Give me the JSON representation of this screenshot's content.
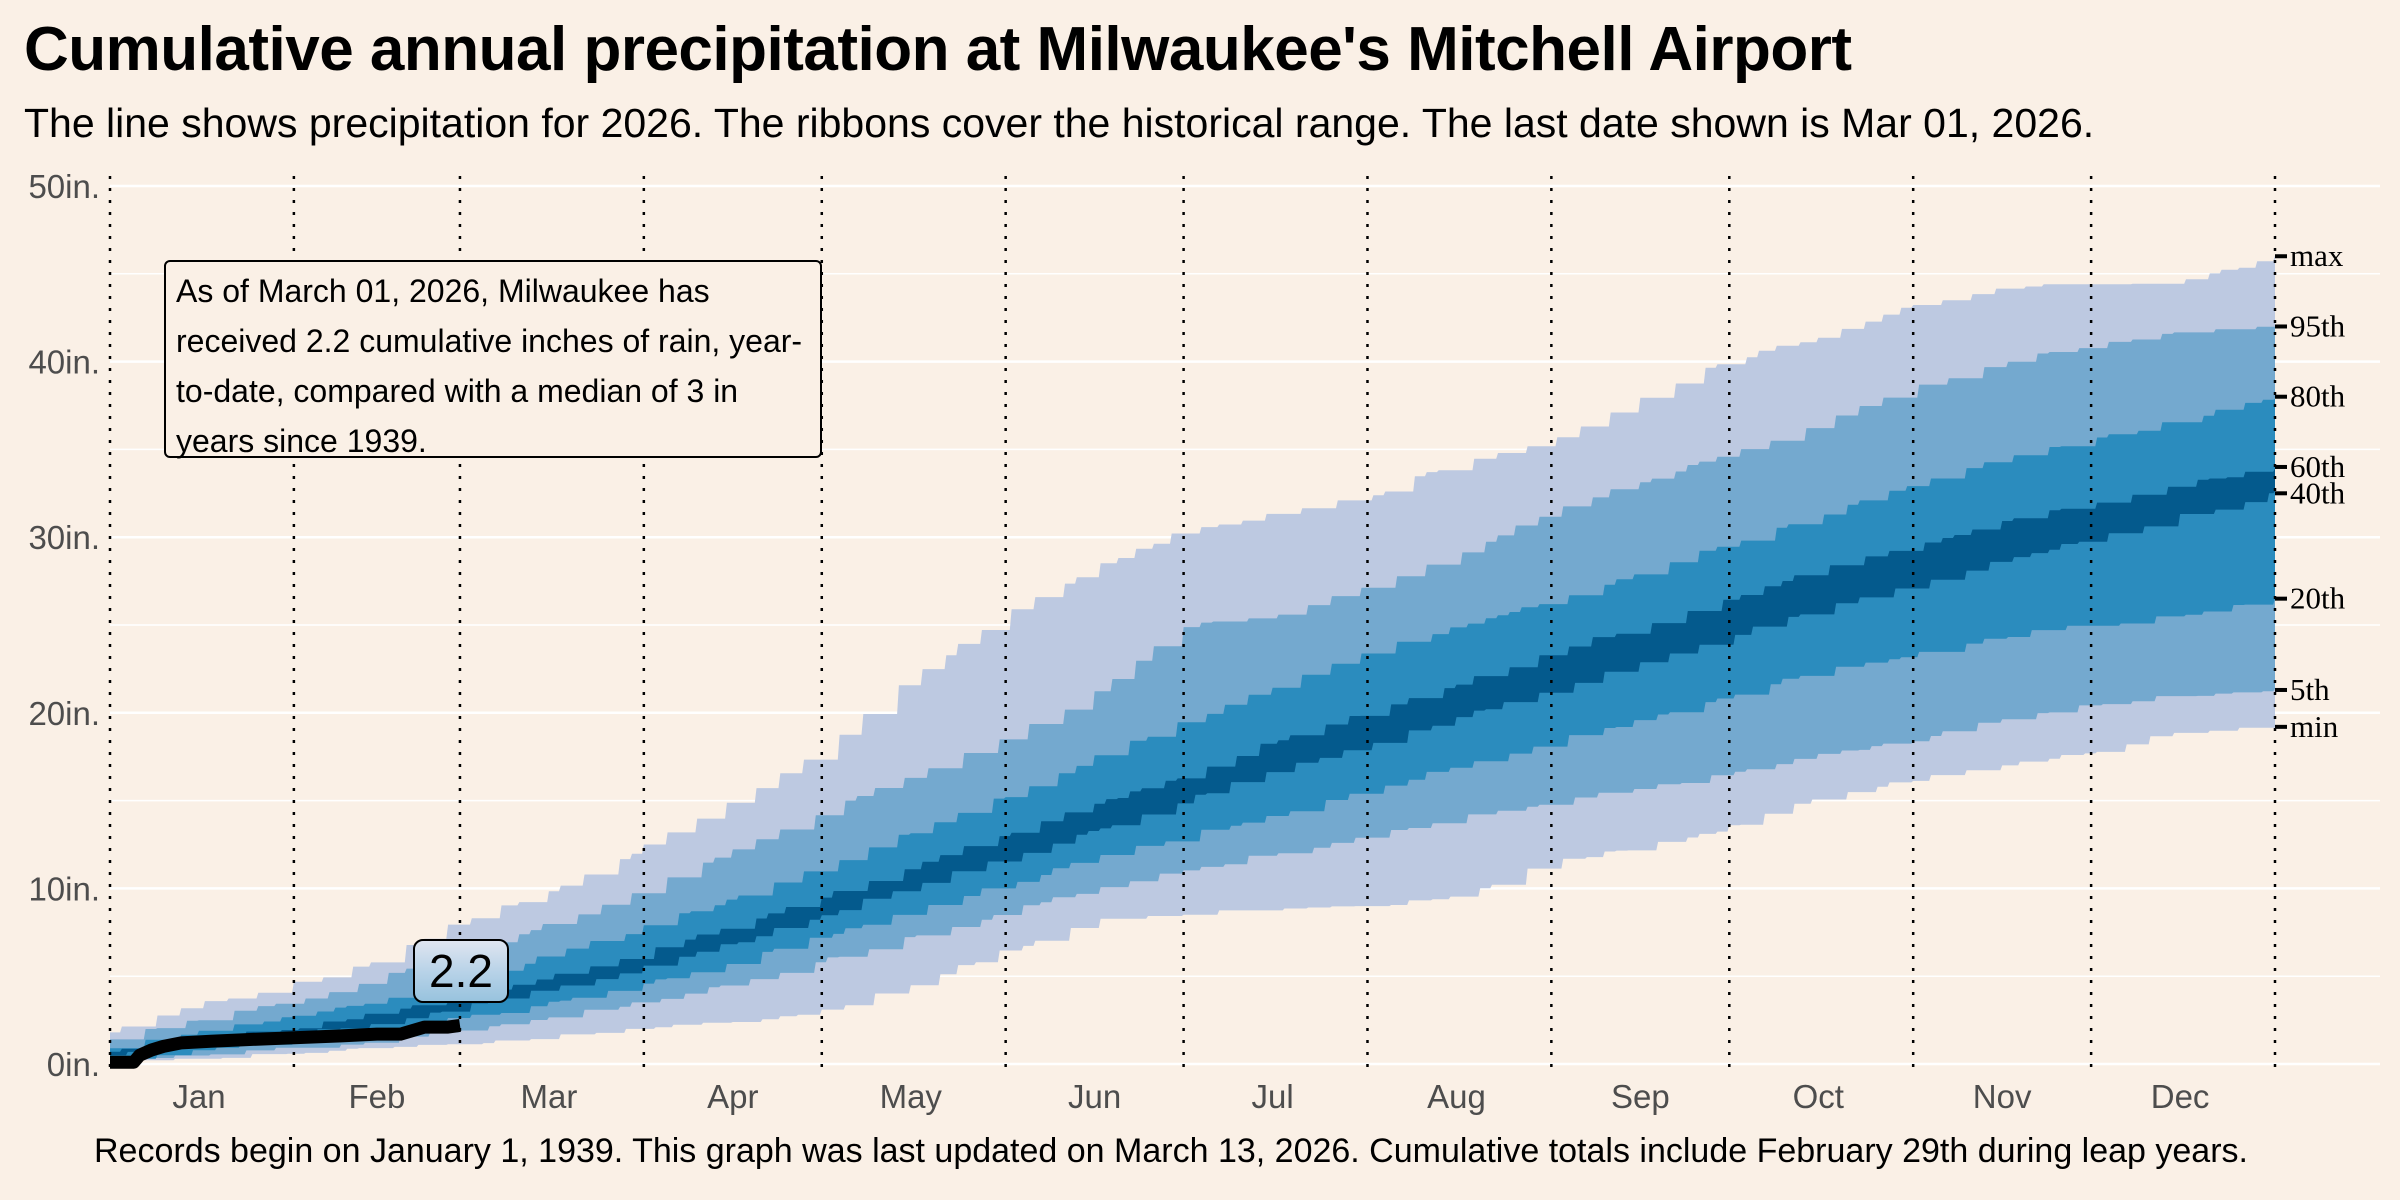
{
  "title": "Cumulative annual precipitation at Milwaukee's Mitchell Airport",
  "subtitle": "The line shows precipitation for 2026. The ribbons cover the historical range. The last date shown is Mar 01, 2026.",
  "caption": "Records begin on January 1, 1939. This graph was last updated on March 13, 2026. Cumulative totals include February 29th during leap years.",
  "annotation": {
    "text": "As of March 01, 2026, Milwaukee has received 2.2 cumulative inches of rain, year-to-date, compared with a median of 3 in years since 1939."
  },
  "current_value_label": "2.2",
  "colors": {
    "background": "#faf0e6",
    "band_outer": "#bdc9e1",
    "band_95_80": "#74a9cf",
    "band_80_60": "#2b8cbe",
    "band_inner": "#045a8d",
    "current_line": "#000000",
    "grid": "#ffffff"
  },
  "chart_data": {
    "type": "area",
    "title": "Cumulative annual precipitation at Milwaukee's Mitchell Airport",
    "xlabel": "",
    "ylabel": "",
    "ylim": [
      0,
      50
    ],
    "xlim_days": [
      1,
      366
    ],
    "y_ticks": [
      {
        "value": 0,
        "label": "0in."
      },
      {
        "value": 10,
        "label": "10in."
      },
      {
        "value": 20,
        "label": "20in."
      },
      {
        "value": 30,
        "label": "30in."
      },
      {
        "value": 40,
        "label": "40in."
      },
      {
        "value": 50,
        "label": "50in."
      }
    ],
    "x_ticks": [
      {
        "day": 16,
        "label": "Jan"
      },
      {
        "day": 46,
        "label": "Feb"
      },
      {
        "day": 75,
        "label": "Mar"
      },
      {
        "day": 106,
        "label": "Apr"
      },
      {
        "day": 136,
        "label": "May"
      },
      {
        "day": 167,
        "label": "Jun"
      },
      {
        "day": 197,
        "label": "Jul"
      },
      {
        "day": 228,
        "label": "Aug"
      },
      {
        "day": 259,
        "label": "Sep"
      },
      {
        "day": 289,
        "label": "Oct"
      },
      {
        "day": 320,
        "label": "Nov"
      },
      {
        "day": 350,
        "label": "Dec"
      }
    ],
    "month_boundaries_days": [
      1,
      32,
      60,
      91,
      121,
      152,
      182,
      213,
      244,
      274,
      305,
      335,
      366
    ],
    "grid": true,
    "days": [
      1,
      15,
      32,
      46,
      60,
      75,
      91,
      106,
      121,
      136,
      152,
      167,
      182,
      197,
      213,
      228,
      244,
      259,
      274,
      289,
      305,
      320,
      335,
      350,
      366
    ],
    "series": [
      {
        "name": "min",
        "values": [
          0,
          0.3,
          0.6,
          0.9,
          1.2,
          1.6,
          2.0,
          2.4,
          3.0,
          4.6,
          6.5,
          8.2,
          8.6,
          8.8,
          9.0,
          9.6,
          11.5,
          12.3,
          13.5,
          15.2,
          16.2,
          17.0,
          17.8,
          19.0,
          19.2
        ]
      },
      {
        "name": "5th",
        "values": [
          0.2,
          0.5,
          0.9,
          1.3,
          1.9,
          2.6,
          3.6,
          4.6,
          5.9,
          7.2,
          8.7,
          10.0,
          11.0,
          12.0,
          13.0,
          14.0,
          15.0,
          15.7,
          16.5,
          17.6,
          18.5,
          19.6,
          20.5,
          21.0,
          21.3
        ]
      },
      {
        "name": "20th",
        "values": [
          0.3,
          0.8,
          1.3,
          1.9,
          2.6,
          3.5,
          4.6,
          5.8,
          7.3,
          8.7,
          10.3,
          11.7,
          13.0,
          14.2,
          15.7,
          17.0,
          18.4,
          19.6,
          21.0,
          22.5,
          23.3,
          24.4,
          25.0,
          25.5,
          26.5
        ]
      },
      {
        "name": "40th",
        "values": [
          0.5,
          1.1,
          1.7,
          2.4,
          3.2,
          4.3,
          5.5,
          6.9,
          8.5,
          10.2,
          11.8,
          13.4,
          15.0,
          16.8,
          18.2,
          19.8,
          21.4,
          23.0,
          24.4,
          26.0,
          27.4,
          28.7,
          30.0,
          31.2,
          32.5
        ]
      },
      {
        "name": "60th",
        "values": [
          0.7,
          1.4,
          2.1,
          2.9,
          3.8,
          5.0,
          6.4,
          7.9,
          9.6,
          11.3,
          13.1,
          14.8,
          16.5,
          18.4,
          20.0,
          21.7,
          23.5,
          25.0,
          26.6,
          28.2,
          29.6,
          30.8,
          32.0,
          33.0,
          34.0
        ]
      },
      {
        "name": "80th",
        "values": [
          0.9,
          1.9,
          2.7,
          3.7,
          4.8,
          6.2,
          7.8,
          9.5,
          11.3,
          13.2,
          15.3,
          17.5,
          19.5,
          21.5,
          23.5,
          25.0,
          26.5,
          28.0,
          29.7,
          31.3,
          33.0,
          34.5,
          35.5,
          36.7,
          38.0
        ]
      },
      {
        "name": "95th",
        "values": [
          1.4,
          2.5,
          3.6,
          4.9,
          6.2,
          8.0,
          10.0,
          12.2,
          14.4,
          16.5,
          18.6,
          21.1,
          25.0,
          25.6,
          27.2,
          29.0,
          31.5,
          33.2,
          34.8,
          36.5,
          38.5,
          40.0,
          41.0,
          41.6,
          42.0
        ]
      },
      {
        "name": "max",
        "values": [
          1.8,
          3.4,
          4.6,
          5.8,
          8.2,
          9.8,
          12.4,
          15.0,
          18.0,
          22.0,
          25.6,
          28.3,
          30.4,
          31.3,
          32.3,
          34.3,
          35.5,
          38.0,
          40.1,
          41.4,
          43.2,
          44.3,
          44.4,
          44.5,
          46.0
        ]
      }
    ],
    "bands": [
      {
        "name": "min-5th / 95th-max",
        "lower": "min",
        "upper": "max",
        "color_key": "band_outer"
      },
      {
        "name": "5th-20th / 80th-95th",
        "lower": "5th",
        "upper": "95th",
        "color_key": "band_95_80"
      },
      {
        "name": "20th-40th / 60th-80th",
        "lower": "20th",
        "upper": "80th",
        "color_key": "band_80_60"
      },
      {
        "name": "40th-60th",
        "lower": "40th",
        "upper": "60th",
        "color_key": "band_inner"
      }
    ],
    "percentile_labels": [
      {
        "label": "max",
        "value": 46.0
      },
      {
        "label": "95th",
        "value": 42.0
      },
      {
        "label": "80th",
        "value": 38.0
      },
      {
        "label": "60th",
        "value": 34.0
      },
      {
        "label": "40th",
        "value": 32.5
      },
      {
        "label": "20th",
        "value": 26.5
      },
      {
        "label": "5th",
        "value": 21.3
      },
      {
        "label": "min",
        "value": 19.2
      }
    ],
    "current_year": {
      "name": "2026",
      "days": [
        1,
        5,
        6,
        8,
        10,
        13,
        18,
        25,
        32,
        40,
        46,
        50,
        54,
        58,
        60
      ],
      "values": [
        0.1,
        0.1,
        0.5,
        0.8,
        1.0,
        1.2,
        1.3,
        1.4,
        1.5,
        1.6,
        1.7,
        1.7,
        2.1,
        2.1,
        2.2
      ]
    }
  }
}
